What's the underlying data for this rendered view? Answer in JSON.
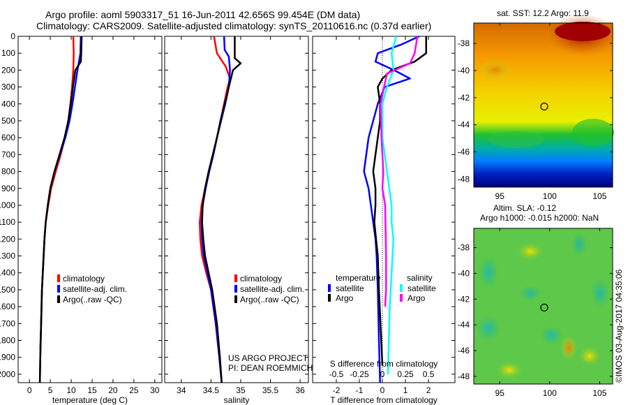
{
  "title_line1": "Argo profile: aoml 5903317_51 16-Jun-2011 42.656S 99.454E (DM data)",
  "title_line2": "Climatology: CARS2009. Satellite-adjusted climatology: synTS_20110616.nc (0.37d earlier)",
  "project_line1": "US ARGO PROJECT",
  "project_line2": "PI: DEAN ROEMMICH",
  "copyright": "©IMOS 03-Aug-2017 04:35:06",
  "colors": {
    "climatology": "#ff0000",
    "satellite": "#0000ff",
    "argo": "#000000",
    "sal_satellite": "#00ffff",
    "sal_argo": "#ff00ff"
  },
  "chart_data": [
    {
      "type": "line",
      "name": "temperature",
      "xlabel": "temperature (deg C)",
      "ylabel": "",
      "xlim": [
        -2.7,
        31.7
      ],
      "ylim": [
        0,
        2050
      ],
      "y_reversed": true,
      "xticks": [
        0,
        5,
        10,
        15,
        20,
        25,
        30
      ],
      "yticks": [
        0,
        100,
        200,
        300,
        400,
        500,
        600,
        700,
        800,
        900,
        1000,
        1100,
        1200,
        1300,
        1400,
        1500,
        1600,
        1700,
        1800,
        1900,
        2000
      ],
      "legend": [
        "climatology",
        "satellite-adj. clim.",
        "Argo(..raw -QC)"
      ],
      "series": [
        {
          "name": "climatology",
          "color": "#ff0000",
          "x": [
            10.5,
            10.6,
            10.5,
            10.2,
            9.8,
            9.3,
            8.5,
            7.5,
            6.3,
            5.2,
            4.5,
            3.9,
            3.6,
            3.4,
            3.2,
            3.0,
            2.8,
            2.6
          ],
          "y": [
            0,
            100,
            200,
            300,
            400,
            500,
            600,
            700,
            800,
            900,
            1000,
            1100,
            1200,
            1300,
            1400,
            1500,
            1700,
            1850
          ]
        },
        {
          "name": "satellite-adj. clim.",
          "color": "#0000ff",
          "x": [
            12.3,
            12.2,
            11.5,
            10.9,
            10.3,
            9.6,
            8.6,
            7.3,
            6.0,
            5.0,
            4.4,
            3.9,
            3.6,
            3.4,
            3.2,
            3.0,
            2.8,
            2.6,
            2.5
          ],
          "y": [
            0,
            100,
            200,
            300,
            400,
            500,
            600,
            700,
            800,
            900,
            1000,
            1100,
            1200,
            1300,
            1400,
            1500,
            1700,
            1900,
            2050
          ]
        },
        {
          "name": "Argo(..raw -QC)",
          "color": "#000000",
          "x": [
            12.5,
            12.4,
            12.3,
            11.0,
            10.4,
            9.9,
            9.3,
            8.4,
            7.2,
            6.0,
            5.0,
            4.4,
            3.9,
            3.6,
            3.4,
            3.2,
            3.0,
            2.8,
            2.6,
            2.5
          ],
          "y": [
            0,
            100,
            150,
            200,
            300,
            400,
            500,
            600,
            700,
            800,
            900,
            1000,
            1100,
            1200,
            1300,
            1400,
            1500,
            1700,
            1900,
            2050
          ]
        }
      ]
    },
    {
      "type": "line",
      "name": "salinity",
      "xlabel": "salinity",
      "xlim": [
        33.72,
        36.14
      ],
      "ylim": [
        0,
        2050
      ],
      "y_reversed": true,
      "xticks": [
        34,
        34.5,
        35,
        35.5,
        36
      ],
      "legend": [
        "climatology",
        "satellite-adj. clim.",
        "Argo(..raw -QC)"
      ],
      "series": [
        {
          "name": "climatology",
          "color": "#ff0000",
          "x": [
            34.55,
            34.6,
            34.75,
            34.82,
            34.78,
            34.72,
            34.66,
            34.6,
            34.54,
            34.47,
            34.4,
            34.34,
            34.31,
            34.32,
            34.35,
            34.42,
            34.5,
            34.58,
            34.64,
            34.68
          ],
          "y": [
            0,
            100,
            180,
            250,
            300,
            400,
            500,
            600,
            700,
            800,
            900,
            1000,
            1100,
            1200,
            1300,
            1400,
            1500,
            1700,
            1900,
            2050
          ]
        },
        {
          "name": "satellite-adj. clim.",
          "color": "#0000ff",
          "x": [
            34.72,
            34.73,
            34.8,
            34.82,
            34.8,
            34.74,
            34.67,
            34.6,
            34.54,
            34.47,
            34.41,
            34.36,
            34.34,
            34.35,
            34.38,
            34.44,
            34.5,
            34.58,
            34.64,
            34.68
          ],
          "y": [
            0,
            80,
            120,
            200,
            300,
            400,
            500,
            600,
            700,
            800,
            900,
            1000,
            1100,
            1200,
            1300,
            1400,
            1500,
            1700,
            1900,
            2050
          ]
        },
        {
          "name": "Argo(..raw -QC)",
          "color": "#000000",
          "x": [
            34.9,
            34.9,
            35.0,
            34.87,
            34.8,
            34.73,
            34.66,
            34.6,
            34.53,
            34.46,
            34.4,
            34.36,
            34.35,
            34.37,
            34.4,
            34.46,
            34.52,
            34.6,
            34.65,
            34.68
          ],
          "y": [
            0,
            130,
            160,
            200,
            300,
            400,
            500,
            600,
            700,
            800,
            900,
            1000,
            1100,
            1200,
            1300,
            1400,
            1500,
            1700,
            1900,
            2050
          ]
        }
      ]
    },
    {
      "type": "line",
      "name": "difference",
      "xlabel": "T difference from climatology",
      "x2label": "S difference from climatology",
      "xlim": [
        -3.03,
        3.15
      ],
      "x2lim": [
        -0.757,
        0.787
      ],
      "ylim": [
        0,
        2050
      ],
      "y_reversed": true,
      "xticks": [
        -2,
        -1,
        0,
        1,
        2
      ],
      "x2ticks": [
        -0.5,
        -0.25,
        0,
        0.25,
        0.5
      ],
      "x2ticklabels": [
        "-0.5",
        "-0.25",
        "0",
        "0.25",
        "0.5"
      ],
      "legend": {
        "temperature_title": "temperature",
        "salinity_title": "salinity",
        "items": [
          "satellite",
          "Argo",
          "satellite",
          "Argo"
        ]
      },
      "series": [
        {
          "name": "T satellite",
          "axis": "T",
          "color": "#0000ff",
          "x": [
            1.6,
            0.8,
            -0.2,
            -0.3,
            0.5,
            1.2,
            0.1,
            -0.2,
            -0.4,
            -0.6,
            -0.8,
            -0.6,
            -0.5,
            -0.4,
            -0.3,
            -0.25,
            -0.2,
            -0.15,
            -0.1
          ],
          "y": [
            0,
            50,
            100,
            150,
            200,
            250,
            300,
            400,
            500,
            600,
            800,
            900,
            1000,
            1100,
            1200,
            1300,
            1500,
            1800,
            2050
          ]
        },
        {
          "name": "T Argo",
          "axis": "T",
          "color": "#000000",
          "x": [
            1.9,
            1.9,
            1.4,
            0.4,
            0,
            -0.2,
            -0.1,
            -0.1,
            -0.2,
            -0.4,
            -0.3,
            -0.3,
            -0.35,
            -0.2,
            -0.15,
            -0.05,
            0
          ],
          "y": [
            0,
            100,
            150,
            200,
            250,
            300,
            400,
            500,
            600,
            800,
            900,
            1000,
            1100,
            1300,
            1500,
            1800,
            1950
          ]
        },
        {
          "name": "S satellite",
          "axis": "S",
          "color": "#00ffff",
          "x": [
            0.15,
            0.1,
            0.12,
            0.05,
            0.0,
            0.0,
            0.05,
            0.1,
            0.1,
            0.12,
            0.1,
            0.08,
            0.06
          ],
          "y": [
            0,
            100,
            200,
            300,
            400,
            600,
            800,
            1000,
            1100,
            1200,
            1400,
            1600,
            2000
          ]
        },
        {
          "name": "S Argo",
          "axis": "S",
          "color": "#ff00ff",
          "x": [
            0.38,
            0.35,
            0.3,
            0.05,
            -0.02,
            -0.01,
            0.01,
            0.0,
            0.03,
            0.04,
            0.04,
            0.03
          ],
          "y": [
            0,
            100,
            160,
            220,
            400,
            600,
            800,
            900,
            1000,
            1300,
            1500,
            1600
          ]
        }
      ]
    },
    {
      "type": "heatmap",
      "name": "sst-map",
      "title": "sat. SST: 12.2 Argo: 11.9",
      "xlim": [
        92.4,
        106.3
      ],
      "ylim": [
        -48.6,
        -36.5
      ],
      "xticks": [
        95,
        100,
        105
      ],
      "yticks": [
        -38,
        -40,
        -42,
        -44,
        -46,
        -48
      ],
      "marker": {
        "lon": 99.454,
        "lat": -42.656
      }
    },
    {
      "type": "heatmap",
      "name": "sla-map",
      "title_line1": "Altim. SLA: -0.12",
      "title_line2": "Argo h1000: -0.015 h2000: NaN",
      "xlim": [
        92.4,
        106.3
      ],
      "ylim": [
        -48.6,
        -36.5
      ],
      "xticks": [
        95,
        100,
        105
      ],
      "yticks": [
        -38,
        -40,
        -42,
        -44,
        -46,
        -48
      ],
      "marker": {
        "lon": 99.454,
        "lat": -42.656
      }
    }
  ]
}
